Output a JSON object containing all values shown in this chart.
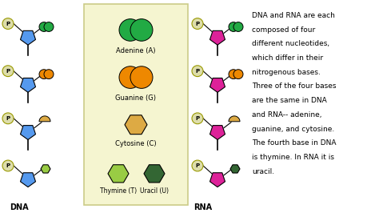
{
  "background_color": "#ffffff",
  "panel_bg": "#f5f5d0",
  "text_content": "DNA and RNA are each\ncomposed of four\ndifferent nucleotides,\nwhich differ in their\nnitrogenous bases.\nThree of the four bases\nare the same in DNA\nand RNA-- adenine,\nguanine, and cytosine.\nThe fourth base in DNA\nis thymine. In RNA it is\nuracil.",
  "nucleotides_word": "nucleotides",
  "dna_label": "DNA",
  "rna_label": "RNA",
  "adenine_label": "Adenine (A)",
  "guanine_label": "Guanine (G)",
  "cytosine_label": "Cytosine (C)",
  "thymine_label": "Thymine (T)",
  "uracil_label": "Uracil (U)",
  "color_adenine": "#22aa44",
  "color_guanine": "#ee8800",
  "color_cytosine": "#ddaa44",
  "color_thymine": "#99cc44",
  "color_uracil": "#336633",
  "color_sugar_dna": "#5599ee",
  "color_sugar_rna": "#dd2299",
  "color_phosphate": "#ddddaa",
  "color_phosphate_outline": "#999900"
}
